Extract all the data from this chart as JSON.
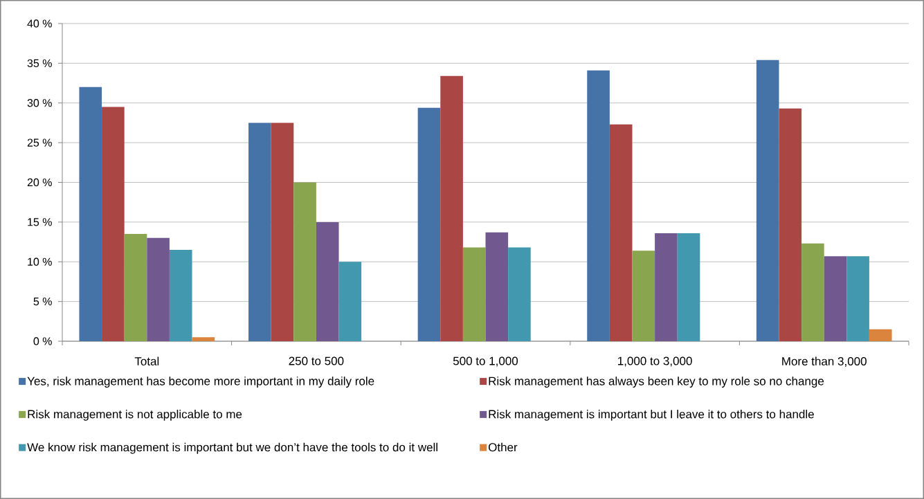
{
  "chart_data": {
    "type": "bar",
    "categories": [
      "Total",
      "250 to 500",
      "500 to 1,000",
      "1,000 to 3,000",
      "More than 3,000"
    ],
    "series": [
      {
        "name": "Yes, risk management has become more important in my daily role",
        "color": "#4572a7",
        "values": [
          32.0,
          27.5,
          29.4,
          34.1,
          35.4
        ]
      },
      {
        "name": "Risk management has always been key to my role so no change",
        "color": "#aa4643",
        "values": [
          29.5,
          27.5,
          33.4,
          27.3,
          29.3
        ]
      },
      {
        "name": "Risk management is not applicable to me",
        "color": "#89a54e",
        "values": [
          13.5,
          20.0,
          11.8,
          11.4,
          12.3
        ]
      },
      {
        "name": "Risk management is important but I leave it to others to handle",
        "color": "#71588f",
        "values": [
          13.0,
          15.0,
          13.7,
          13.6,
          10.7
        ]
      },
      {
        "name": "We know risk management is important but we don’t have the tools to do it well",
        "color": "#4198af",
        "values": [
          11.5,
          10.0,
          11.8,
          13.6,
          10.7
        ]
      },
      {
        "name": "Other",
        "color": "#db843d",
        "values": [
          0.5,
          null,
          null,
          null,
          1.5
        ]
      }
    ],
    "ylim": [
      0,
      40
    ],
    "yticks": [
      {
        "value": 0,
        "label": "0 %"
      },
      {
        "value": 5,
        "label": "5 %"
      },
      {
        "value": 10,
        "label": "10 %"
      },
      {
        "value": 15,
        "label": "15 %"
      },
      {
        "value": 20,
        "label": "20 %"
      },
      {
        "value": 25,
        "label": "25 %"
      },
      {
        "value": 30,
        "label": "30 %"
      },
      {
        "value": 35,
        "label": "35 %"
      },
      {
        "value": 40,
        "label": "40 %"
      }
    ],
    "grid": "y",
    "legend": "bottom"
  }
}
